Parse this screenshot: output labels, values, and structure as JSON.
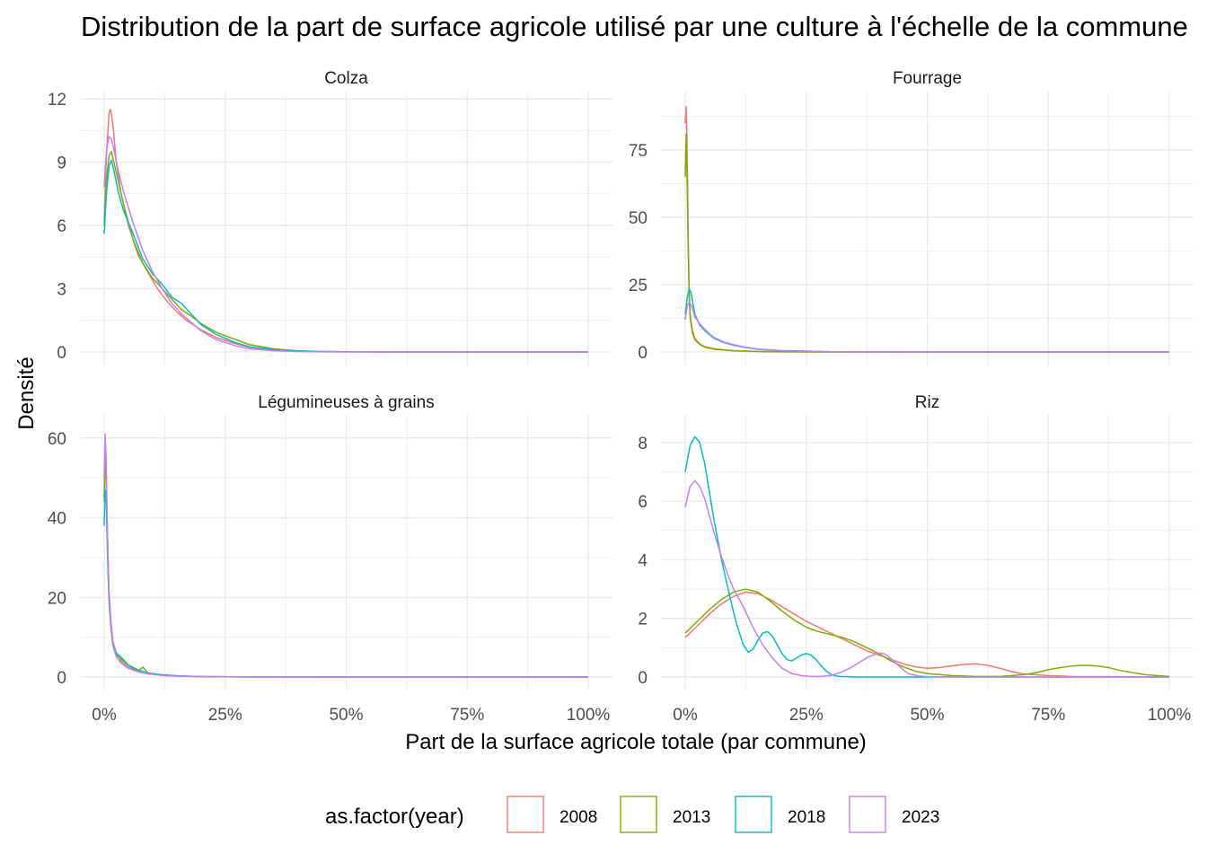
{
  "chart_data": {
    "type": "line",
    "title": "Distribution de la part de surface agricole utilisé par une culture à l'échelle de la commune",
    "xlabel": "Part de la surface agricole totale (par commune)",
    "ylabel": "Densité",
    "xlim": [
      0,
      1
    ],
    "x_tick_values": [
      0,
      0.25,
      0.5,
      0.75,
      1
    ],
    "x_tick_labels": [
      "0%",
      "25%",
      "50%",
      "75%",
      "100%"
    ],
    "grid": true,
    "legend": {
      "title": "as.factor(year)",
      "position": "bottom",
      "entries": [
        {
          "label": "2008",
          "color": "#F8766D"
        },
        {
          "label": "2013",
          "color": "#7CAE00"
        },
        {
          "label": "2018",
          "color": "#00BFC4"
        },
        {
          "label": "2023",
          "color": "#C77CFF"
        }
      ]
    },
    "panels": [
      {
        "name": "Colza",
        "ylim": [
          0,
          12
        ],
        "y_ticks": [
          0,
          3,
          6,
          9,
          12
        ],
        "series": [
          {
            "name": "2008",
            "x": [
              0,
              0.005,
              0.01,
              0.013,
              0.018,
              0.025,
              0.035,
              0.05,
              0.07,
              0.09,
              0.11,
              0.13,
              0.15,
              0.17,
              0.2,
              0.23,
              0.27,
              0.3,
              0.35,
              0.4,
              0.45,
              0.5,
              0.6,
              0.8,
              1.0
            ],
            "y": [
              6.2,
              9.5,
              11.3,
              11.5,
              10.8,
              9.0,
              7.5,
              6.0,
              4.6,
              3.8,
              3.0,
              2.4,
              1.9,
              1.5,
              1.05,
              0.7,
              0.4,
              0.22,
              0.1,
              0.05,
              0.02,
              0.01,
              0,
              0,
              0
            ]
          },
          {
            "name": "2013",
            "x": [
              0,
              0.005,
              0.01,
              0.015,
              0.02,
              0.03,
              0.04,
              0.06,
              0.08,
              0.1,
              0.12,
              0.14,
              0.16,
              0.18,
              0.2,
              0.23,
              0.27,
              0.3,
              0.35,
              0.4,
              0.45,
              0.5,
              0.6,
              0.8,
              1.0
            ],
            "y": [
              6.0,
              8.2,
              9.3,
              9.5,
              9.0,
              8.0,
              7.0,
              5.3,
              4.2,
              3.5,
              3.0,
              2.5,
              2.0,
              1.7,
              1.35,
              0.95,
              0.6,
              0.35,
              0.15,
              0.06,
              0.02,
              0.01,
              0,
              0,
              0
            ]
          },
          {
            "name": "2018",
            "x": [
              0,
              0.005,
              0.01,
              0.015,
              0.02,
              0.03,
              0.04,
              0.06,
              0.08,
              0.1,
              0.12,
              0.14,
              0.16,
              0.18,
              0.2,
              0.23,
              0.27,
              0.3,
              0.35,
              0.4,
              0.45,
              0.5,
              0.6,
              0.8,
              1.0
            ],
            "y": [
              5.6,
              7.6,
              8.8,
              9.1,
              8.6,
              7.5,
              6.7,
              5.6,
              4.4,
              3.7,
              3.2,
              2.6,
              2.3,
              1.8,
              1.3,
              0.85,
              0.45,
              0.25,
              0.1,
              0.05,
              0.02,
              0.01,
              0,
              0,
              0
            ]
          },
          {
            "name": "2023",
            "x": [
              0,
              0.005,
              0.01,
              0.015,
              0.02,
              0.03,
              0.04,
              0.06,
              0.08,
              0.1,
              0.12,
              0.14,
              0.16,
              0.18,
              0.2,
              0.23,
              0.27,
              0.3,
              0.35,
              0.4,
              0.45,
              0.5,
              0.6,
              0.8,
              1.0
            ],
            "y": [
              7.8,
              9.6,
              10.2,
              10.1,
              9.6,
              8.5,
              7.6,
              6.1,
              4.8,
              3.8,
              3.0,
              2.3,
              1.8,
              1.4,
              1.0,
              0.6,
              0.3,
              0.15,
              0.06,
              0.02,
              0.01,
              0,
              0,
              0,
              0
            ]
          }
        ]
      },
      {
        "name": "Fourrage",
        "ylim": [
          0,
          94
        ],
        "y_ticks": [
          0,
          25,
          50,
          75
        ],
        "series": [
          {
            "name": "2008",
            "x": [
              0,
              0.002,
              0.004,
              0.006,
              0.008,
              0.01,
              0.015,
              0.02,
              0.03,
              0.04,
              0.06,
              0.08,
              0.1,
              0.15,
              0.2,
              0.3,
              0.5,
              1.0
            ],
            "y": [
              85,
              91,
              75,
              45,
              25,
              14,
              8,
              5,
              3,
              2,
              1.2,
              0.8,
              0.5,
              0.2,
              0.08,
              0.02,
              0,
              0
            ]
          },
          {
            "name": "2013",
            "x": [
              0,
              0.002,
              0.004,
              0.006,
              0.008,
              0.01,
              0.015,
              0.02,
              0.03,
              0.04,
              0.06,
              0.08,
              0.1,
              0.15,
              0.2,
              0.3,
              0.5,
              1.0
            ],
            "y": [
              65,
              81,
              62,
              40,
              22,
              13,
              7,
              4.5,
              2.8,
              1.8,
              1.0,
              0.7,
              0.4,
              0.15,
              0.05,
              0.01,
              0,
              0
            ]
          },
          {
            "name": "2018",
            "x": [
              0,
              0.004,
              0.008,
              0.012,
              0.016,
              0.02,
              0.03,
              0.04,
              0.05,
              0.06,
              0.08,
              0.1,
              0.12,
              0.15,
              0.2,
              0.3,
              0.5,
              1.0
            ],
            "y": [
              14,
              20,
              23.5,
              22,
              18,
              14,
              10,
              8,
              6.5,
              5,
              3.5,
              2.5,
              1.8,
              1.0,
              0.5,
              0.1,
              0,
              0
            ]
          },
          {
            "name": "2023",
            "x": [
              0,
              0.004,
              0.008,
              0.012,
              0.016,
              0.02,
              0.03,
              0.04,
              0.05,
              0.06,
              0.08,
              0.1,
              0.12,
              0.15,
              0.2,
              0.3,
              0.5,
              1.0
            ],
            "y": [
              12,
              17,
              18.5,
              17.5,
              15.5,
              13,
              10.5,
              8.5,
              6.8,
              5.3,
              3.7,
              2.7,
              1.9,
              1.1,
              0.5,
              0.1,
              0,
              0
            ]
          }
        ]
      },
      {
        "name": "Légumineuses à grains",
        "ylim": [
          0,
          64
        ],
        "y_ticks": [
          0,
          20,
          40,
          60
        ],
        "series": [
          {
            "name": "2008",
            "x": [
              0,
              0.002,
              0.004,
              0.006,
              0.008,
              0.01,
              0.014,
              0.018,
              0.025,
              0.035,
              0.05,
              0.07,
              0.09,
              0.12,
              0.15,
              0.2,
              0.3,
              0.5,
              1.0
            ],
            "y": [
              44,
              57,
              52,
              40,
              30,
              22,
              14,
              9,
              6,
              4,
              2.5,
              1.5,
              1.0,
              0.5,
              0.3,
              0.1,
              0.02,
              0,
              0
            ]
          },
          {
            "name": "2013",
            "x": [
              0,
              0.002,
              0.004,
              0.006,
              0.008,
              0.01,
              0.014,
              0.018,
              0.025,
              0.035,
              0.05,
              0.07,
              0.08,
              0.09,
              0.12,
              0.15,
              0.2,
              0.3,
              0.5,
              1.0
            ],
            "y": [
              45,
              56,
              50,
              38,
              28,
              20,
              13,
              8,
              5.5,
              4.5,
              3,
              1.5,
              2.5,
              1.0,
              0.5,
              0.2,
              0.1,
              0.02,
              0,
              0
            ]
          },
          {
            "name": "2018",
            "x": [
              0,
              0.002,
              0.004,
              0.006,
              0.008,
              0.01,
              0.014,
              0.018,
              0.025,
              0.035,
              0.05,
              0.07,
              0.09,
              0.12,
              0.15,
              0.2,
              0.3,
              0.5,
              1.0
            ],
            "y": [
              38,
              47,
              45,
              35,
              26,
              19,
              12,
              8,
              6,
              5,
              3,
              1.8,
              1.0,
              0.6,
              0.3,
              0.1,
              0.02,
              0,
              0
            ]
          },
          {
            "name": "2023",
            "x": [
              0,
              0.002,
              0.004,
              0.006,
              0.008,
              0.01,
              0.014,
              0.018,
              0.025,
              0.035,
              0.05,
              0.07,
              0.09,
              0.12,
              0.15,
              0.2,
              0.3,
              0.5,
              1.0
            ],
            "y": [
              50,
              61,
              55,
              41,
              30,
              21,
              13,
              8,
              5,
              3.5,
              2.2,
              1.3,
              0.8,
              0.4,
              0.2,
              0.1,
              0.02,
              0,
              0
            ]
          }
        ]
      },
      {
        "name": "Riz",
        "ylim": [
          0,
          8.7
        ],
        "y_ticks": [
          0,
          2,
          4,
          6,
          8
        ],
        "series": [
          {
            "name": "2008",
            "x": [
              0,
              0.025,
              0.05,
              0.075,
              0.1,
              0.125,
              0.15,
              0.175,
              0.2,
              0.225,
              0.25,
              0.275,
              0.3,
              0.325,
              0.35,
              0.375,
              0.4,
              0.425,
              0.45,
              0.475,
              0.5,
              0.525,
              0.55,
              0.575,
              0.6,
              0.625,
              0.65,
              0.675,
              0.7,
              0.75,
              0.8,
              0.9,
              1.0
            ],
            "y": [
              1.35,
              1.75,
              2.15,
              2.5,
              2.75,
              2.9,
              2.85,
              2.65,
              2.4,
              2.15,
              1.9,
              1.7,
              1.5,
              1.3,
              1.1,
              0.9,
              0.75,
              0.6,
              0.45,
              0.35,
              0.3,
              0.32,
              0.38,
              0.43,
              0.45,
              0.4,
              0.3,
              0.18,
              0.1,
              0.05,
              0.02,
              0.01,
              0
            ]
          },
          {
            "name": "2013",
            "x": [
              0,
              0.025,
              0.05,
              0.075,
              0.1,
              0.125,
              0.15,
              0.175,
              0.2,
              0.225,
              0.25,
              0.275,
              0.3,
              0.325,
              0.35,
              0.375,
              0.4,
              0.425,
              0.45,
              0.475,
              0.5,
              0.55,
              0.6,
              0.65,
              0.7,
              0.725,
              0.75,
              0.775,
              0.8,
              0.825,
              0.85,
              0.875,
              0.9,
              0.95,
              1.0
            ],
            "y": [
              1.5,
              1.9,
              2.3,
              2.65,
              2.9,
              3.0,
              2.9,
              2.6,
              2.25,
              1.95,
              1.7,
              1.55,
              1.45,
              1.35,
              1.2,
              1.0,
              0.8,
              0.55,
              0.35,
              0.2,
              0.12,
              0.05,
              0.02,
              0.02,
              0.08,
              0.15,
              0.25,
              0.32,
              0.38,
              0.4,
              0.38,
              0.32,
              0.22,
              0.08,
              0.02
            ]
          },
          {
            "name": "2018",
            "x": [
              0,
              0.01,
              0.02,
              0.03,
              0.04,
              0.05,
              0.06,
              0.075,
              0.09,
              0.1,
              0.11,
              0.12,
              0.13,
              0.14,
              0.15,
              0.16,
              0.17,
              0.18,
              0.19,
              0.2,
              0.21,
              0.22,
              0.23,
              0.24,
              0.25,
              0.26,
              0.27,
              0.28,
              0.29,
              0.3,
              0.31,
              0.32,
              0.34,
              0.36,
              0.4,
              0.5,
              0.7,
              1.0
            ],
            "y": [
              7.0,
              7.9,
              8.2,
              8.0,
              7.3,
              6.3,
              5.3,
              4.0,
              2.9,
              2.2,
              1.6,
              1.1,
              0.85,
              0.95,
              1.25,
              1.5,
              1.55,
              1.4,
              1.1,
              0.8,
              0.6,
              0.55,
              0.65,
              0.75,
              0.8,
              0.75,
              0.6,
              0.4,
              0.22,
              0.1,
              0.04,
              0.02,
              0.01,
              0,
              0,
              0,
              0,
              0
            ]
          },
          {
            "name": "2023",
            "x": [
              0,
              0.01,
              0.02,
              0.03,
              0.04,
              0.05,
              0.06,
              0.075,
              0.09,
              0.1,
              0.12,
              0.14,
              0.16,
              0.18,
              0.2,
              0.22,
              0.24,
              0.26,
              0.28,
              0.3,
              0.32,
              0.34,
              0.36,
              0.38,
              0.4,
              0.41,
              0.42,
              0.43,
              0.44,
              0.45,
              0.46,
              0.48,
              0.5,
              0.6,
              0.8,
              1.0
            ],
            "y": [
              5.8,
              6.5,
              6.7,
              6.5,
              6.1,
              5.5,
              4.9,
              4.1,
              3.4,
              3.0,
              2.4,
              1.7,
              1.1,
              0.65,
              0.3,
              0.12,
              0.05,
              0.02,
              0.02,
              0.05,
              0.15,
              0.3,
              0.5,
              0.7,
              0.82,
              0.8,
              0.7,
              0.55,
              0.4,
              0.25,
              0.12,
              0.04,
              0.01,
              0,
              0,
              0
            ]
          }
        ]
      }
    ]
  }
}
